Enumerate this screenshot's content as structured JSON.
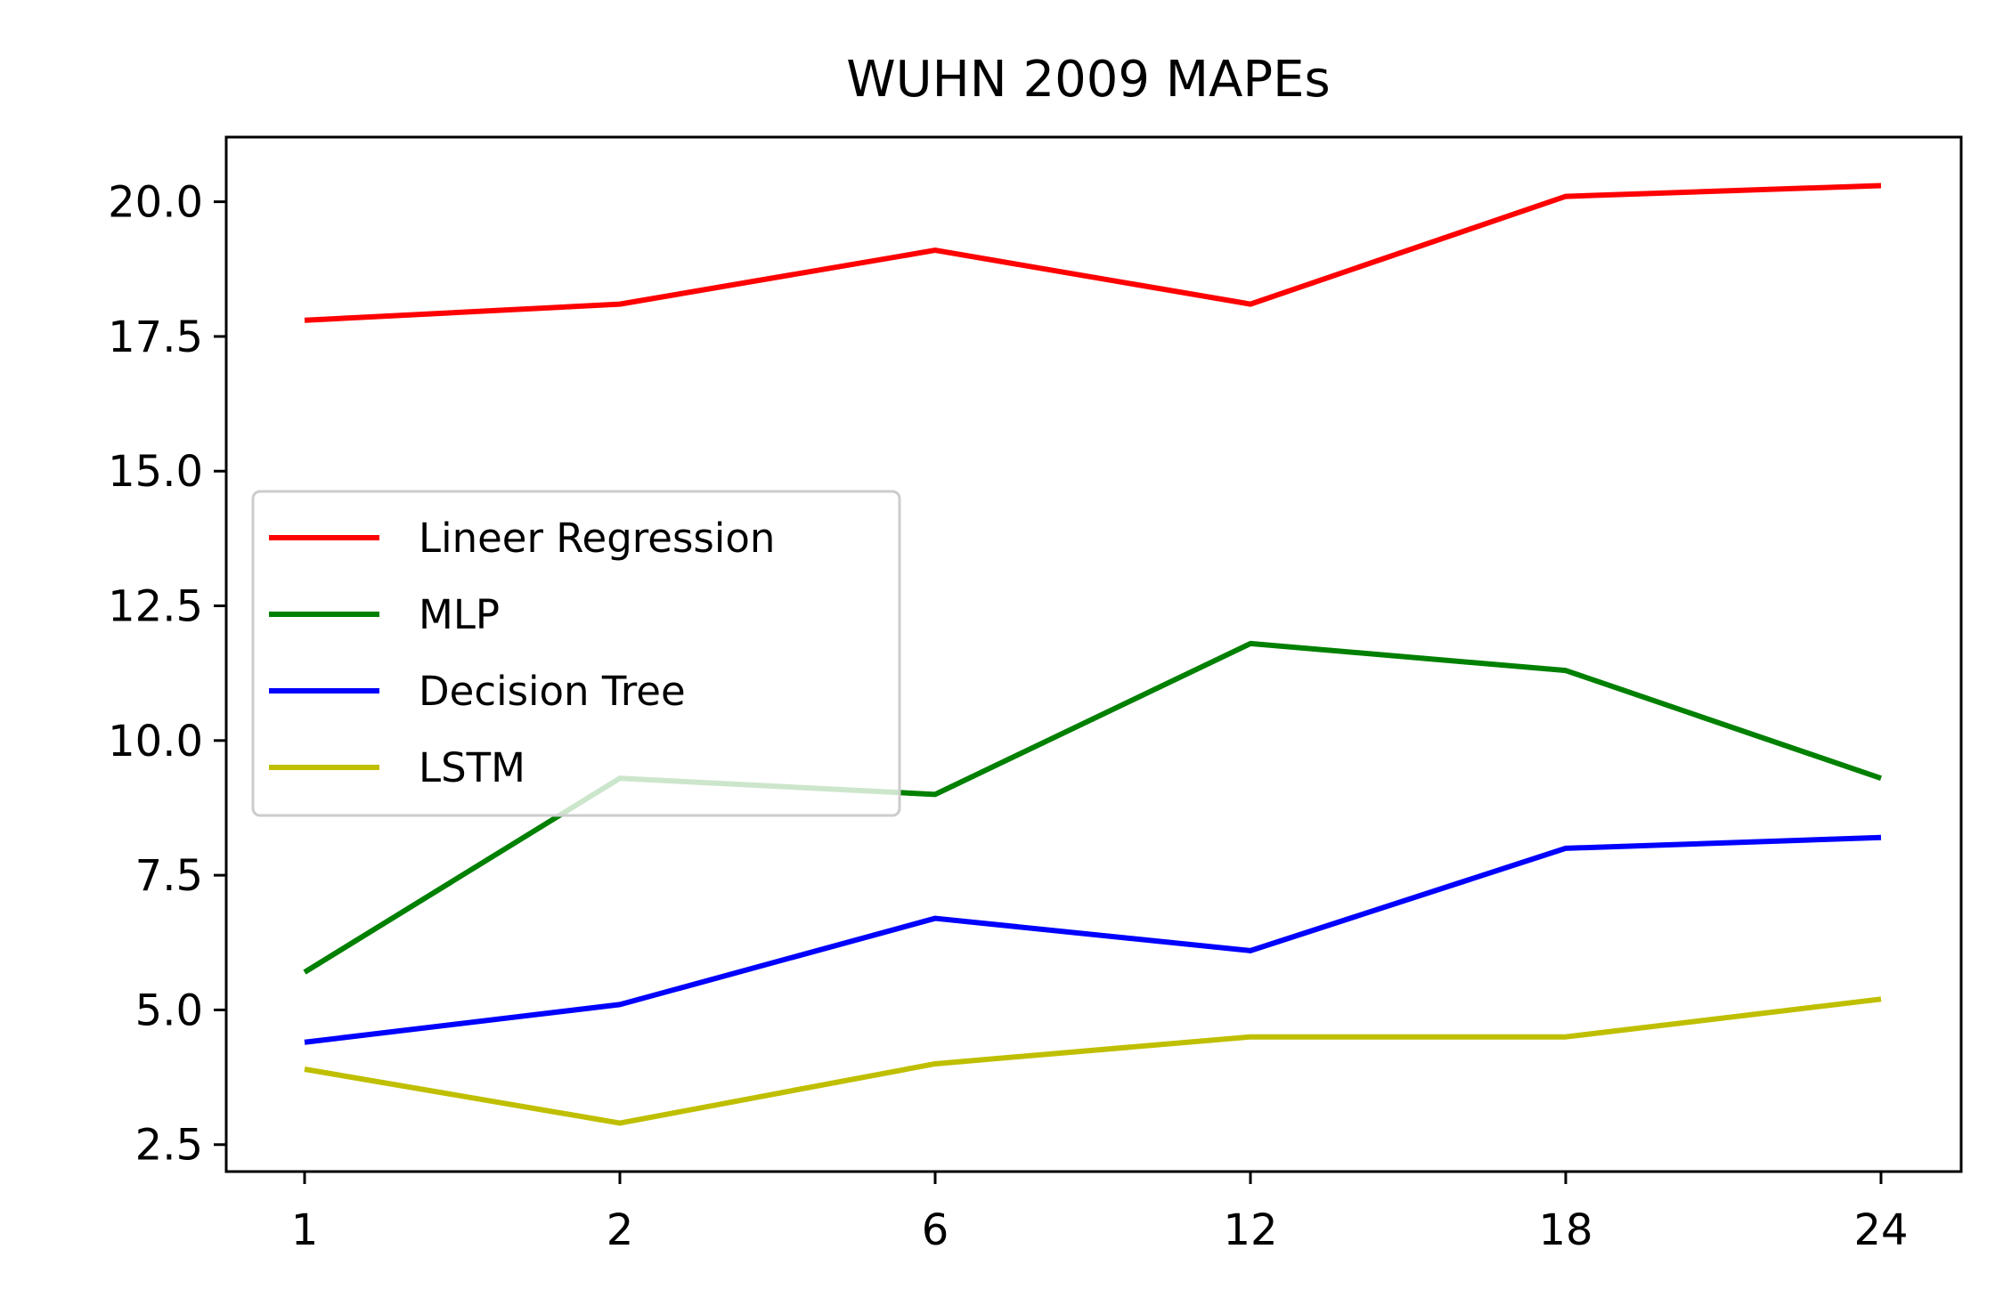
{
  "chart_data": {
    "type": "line",
    "title": "WUHN  2009 MAPEs",
    "xlabel": "",
    "ylabel": "",
    "categories": [
      "1",
      "2",
      "6",
      "12",
      "18",
      "24"
    ],
    "ylim": [
      2.0,
      21.2
    ],
    "yticks": [
      2.5,
      5.0,
      7.5,
      10.0,
      12.5,
      15.0,
      17.5,
      20.0
    ],
    "ytick_labels": [
      "2.5",
      "5.0",
      "7.5",
      "10.0",
      "12.5",
      "15.0",
      "17.5",
      "20.0"
    ],
    "grid": false,
    "legend_position": "center-left",
    "series": [
      {
        "name": "Lineer Regression",
        "color": "#ff0000",
        "values": [
          17.8,
          18.1,
          19.1,
          18.1,
          20.1,
          20.3
        ]
      },
      {
        "name": "MLP",
        "color": "#008000",
        "values": [
          5.7,
          9.3,
          9.0,
          11.8,
          11.3,
          9.3
        ]
      },
      {
        "name": "Decision Tree",
        "color": "#0000ff",
        "values": [
          4.4,
          5.1,
          6.7,
          6.1,
          8.0,
          8.2
        ]
      },
      {
        "name": "LSTM",
        "color": "#bfbf00",
        "values": [
          3.9,
          2.9,
          4.0,
          4.5,
          4.5,
          5.2
        ]
      }
    ]
  }
}
